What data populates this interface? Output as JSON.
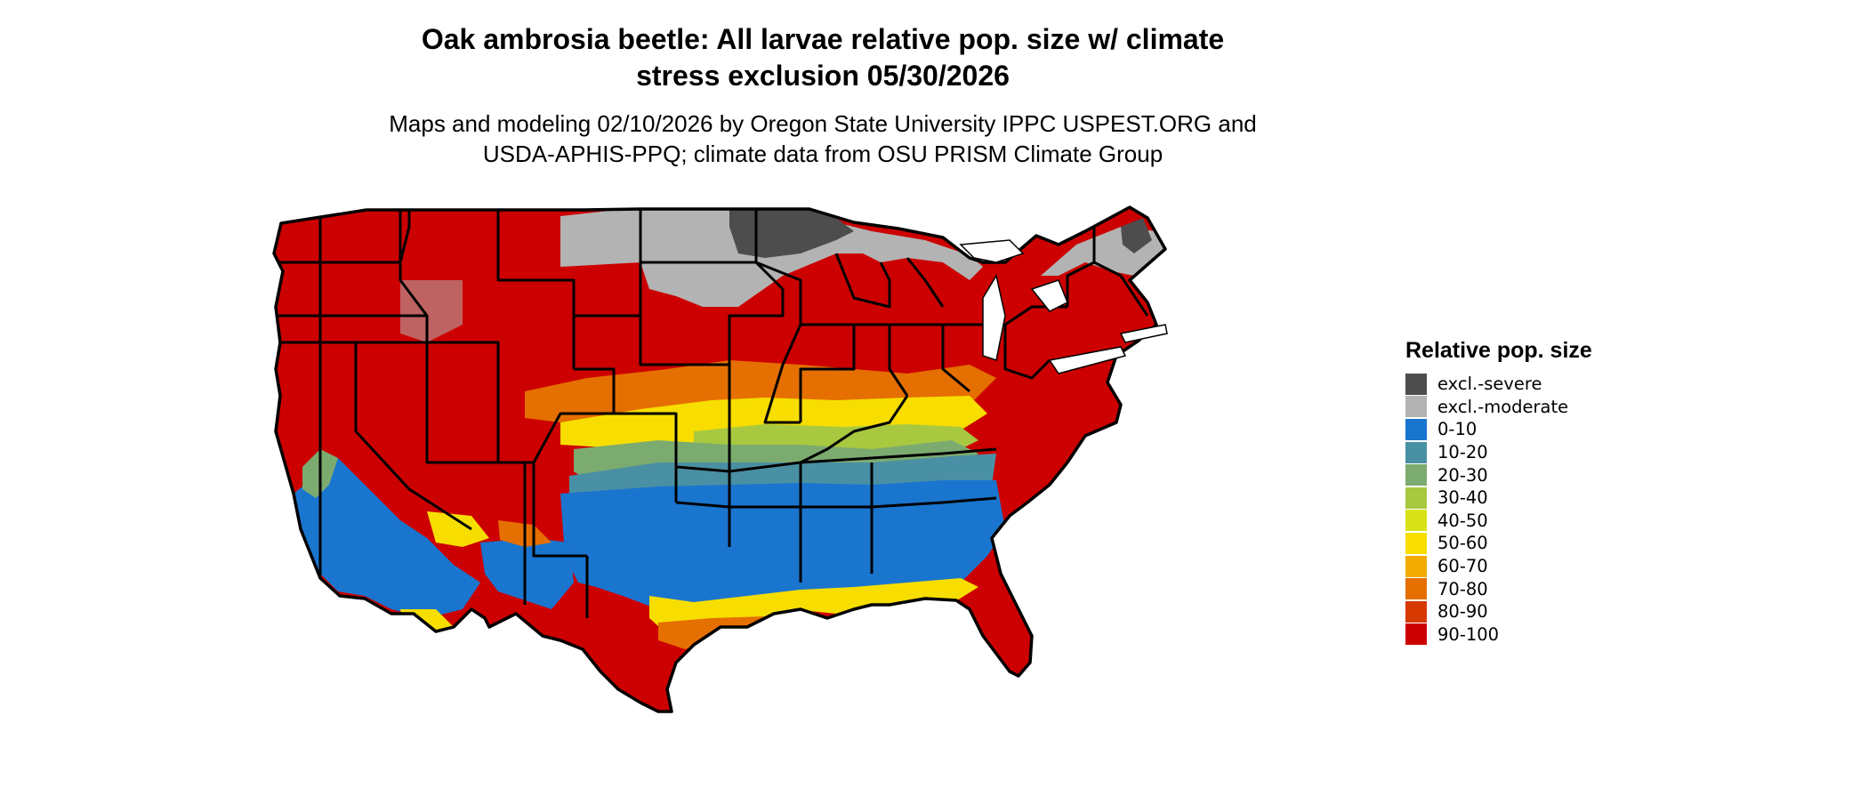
{
  "title": {
    "line1": "Oak ambrosia beetle: All larvae relative pop. size w/ climate",
    "line2": "stress exclusion 05/30/2026"
  },
  "subtitle": {
    "line1": "Maps and modeling 02/10/2026 by Oregon State University IPPC USPEST.ORG and",
    "line2": "USDA-APHIS-PPQ; climate data from OSU PRISM Climate Group"
  },
  "legend": {
    "title": "Relative pop. size",
    "items": [
      {
        "label": "excl.-severe",
        "color": "#4d4d4d"
      },
      {
        "label": "excl.-moderate",
        "color": "#b3b3b3"
      },
      {
        "label": "0-10",
        "color": "#1a75cf"
      },
      {
        "label": "10-20",
        "color": "#4a90a4"
      },
      {
        "label": "20-30",
        "color": "#7cab70"
      },
      {
        "label": "30-40",
        "color": "#a8c840"
      },
      {
        "label": "40-50",
        "color": "#d8e218"
      },
      {
        "label": "50-60",
        "color": "#f7de00"
      },
      {
        "label": "60-70",
        "color": "#f2ab00"
      },
      {
        "label": "70-80",
        "color": "#e56f00"
      },
      {
        "label": "80-90",
        "color": "#d63a00"
      },
      {
        "label": "90-100",
        "color": "#cc0000"
      }
    ]
  }
}
